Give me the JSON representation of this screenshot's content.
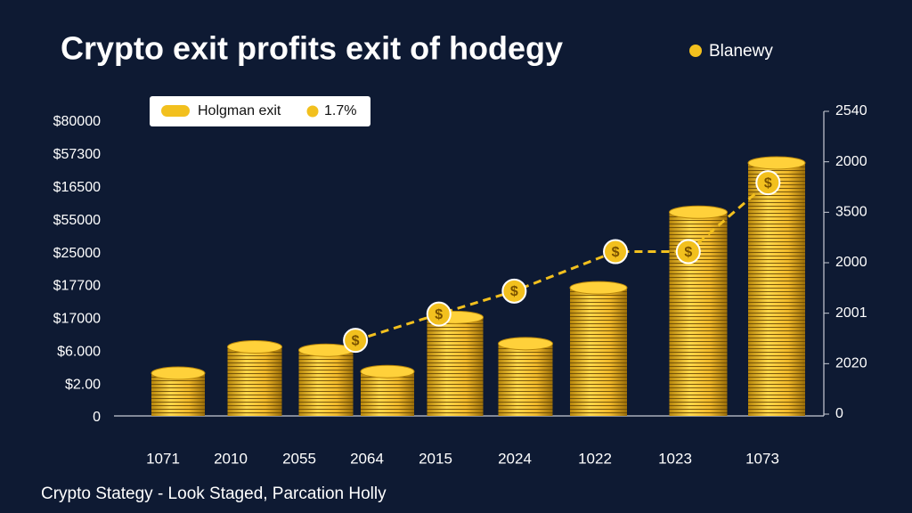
{
  "chart_data": {
    "type": "bar-line",
    "title": "Crypto exit  profits exit of hodegy",
    "footer": "Crypto Stategy - Look Staged, Parcation Holly",
    "top_legend": "Blanewy",
    "categories": [
      "1071",
      "2010",
      "2055",
      "2064",
      "2015",
      "2024",
      "1022",
      "1023",
      "1073"
    ],
    "y_labels": [
      "0",
      "$2.00",
      "$6.000",
      "$17000",
      "$17700",
      "$25000",
      "$55000",
      "$16500",
      "$57300",
      "$80000"
    ],
    "y2_labels": [
      "0",
      "2020",
      "2001",
      "2000",
      "3500",
      "2000",
      "2540"
    ],
    "ylim": [
      0,
      9
    ],
    "marker_symbol": "$",
    "series": [
      {
        "name": "Holgman exit",
        "color": "#f2c01e",
        "values": [
          1.3,
          2.1,
          2.0,
          1.35,
          3.0,
          2.2,
          3.9,
          6.2,
          7.7
        ]
      },
      {
        "name": "1.7%",
        "color": "#f2c01e",
        "x": [
          2.48,
          3.76,
          4.84,
          6.17,
          6.9,
          7.89
        ],
        "values": [
          2.3,
          3.1,
          3.8,
          5.0,
          5.0,
          7.1
        ]
      }
    ]
  }
}
